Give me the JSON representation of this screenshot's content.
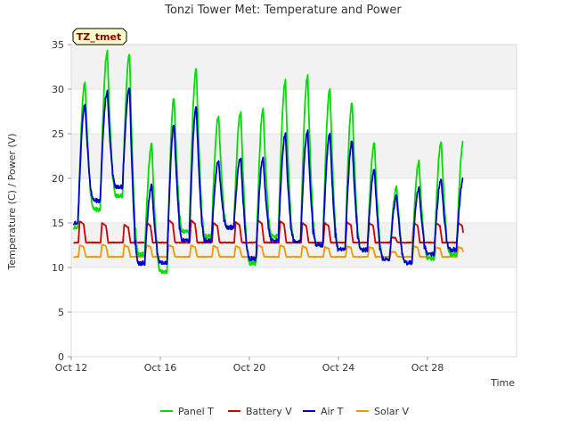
{
  "chart_data": {
    "type": "line",
    "title": "Tonzi Tower Met: Temperature and Power",
    "badge": "TZ_tmet",
    "xlabel": "Time",
    "ylabel": "Temperature (C) / Power (V)",
    "xlim": [
      0,
      20
    ],
    "ylim": [
      0,
      35
    ],
    "x_ticks": [
      {
        "x": 0,
        "label": "Oct 12"
      },
      {
        "x": 4,
        "label": "Oct 16"
      },
      {
        "x": 8,
        "label": "Oct 20"
      },
      {
        "x": 12,
        "label": "Oct 24"
      },
      {
        "x": 16,
        "label": "Oct 28"
      }
    ],
    "y_ticks": [
      0,
      5,
      10,
      15,
      20,
      25,
      30,
      35
    ],
    "grid_bands": [
      [
        10,
        15
      ],
      [
        20,
        25
      ],
      [
        30,
        35
      ]
    ],
    "start_day": 0.1,
    "end_day": 17.6,
    "series": [
      {
        "name": "Panel T",
        "color": "#00dd00",
        "daily_min": [
          14.5,
          16.5,
          18.0,
          11.5,
          9.5,
          14.0,
          13.5,
          14.5,
          10.5,
          13.5,
          13.0,
          12.5,
          12.0,
          12.0,
          11.0,
          10.5,
          11.0,
          11.5
        ],
        "daily_max": [
          30.8,
          34.3,
          34.0,
          23.8,
          29.0,
          32.3,
          27.0,
          27.5,
          27.8,
          31.0,
          31.5,
          30.0,
          28.5,
          24.0,
          19.0,
          22.0,
          24.2
        ]
      },
      {
        "name": "Battery V",
        "color": "#cc0000",
        "daily_min": [
          12.8,
          12.8,
          12.8,
          12.8,
          12.8,
          12.8,
          12.8,
          12.8,
          12.8,
          12.8,
          12.8,
          12.8,
          12.8,
          12.8,
          12.8,
          12.8,
          12.8,
          12.8
        ],
        "daily_max": [
          15.2,
          15.0,
          14.8,
          15.0,
          15.3,
          15.3,
          15.0,
          15.1,
          15.3,
          15.2,
          15.0,
          15.0,
          15.1,
          15.0,
          13.4,
          15.0,
          15.0
        ]
      },
      {
        "name": "Air T",
        "color": "#0000cc",
        "daily_min": [
          15.0,
          17.5,
          19.0,
          10.5,
          10.5,
          13.0,
          13.0,
          14.5,
          11.0,
          13.0,
          13.0,
          12.5,
          12.0,
          12.0,
          11.0,
          10.5,
          11.5,
          12.0
        ],
        "daily_max": [
          28.3,
          29.8,
          30.2,
          19.2,
          26.0,
          28.0,
          22.0,
          22.3,
          22.3,
          25.0,
          25.3,
          25.0,
          24.2,
          21.0,
          18.0,
          19.0,
          20.0
        ]
      },
      {
        "name": "Solar V",
        "color": "#ee9900",
        "daily_min": [
          11.2,
          11.2,
          11.2,
          11.2,
          11.2,
          11.2,
          11.2,
          11.2,
          11.2,
          11.2,
          11.2,
          11.2,
          11.2,
          11.2,
          11.2,
          11.2,
          11.2,
          11.2
        ],
        "daily_max": [
          12.5,
          12.6,
          12.5,
          12.5,
          12.5,
          12.5,
          12.4,
          12.4,
          12.5,
          12.5,
          12.4,
          12.3,
          12.4,
          12.3,
          11.8,
          12.4,
          12.3
        ]
      }
    ],
    "legend_position": "bottom"
  }
}
